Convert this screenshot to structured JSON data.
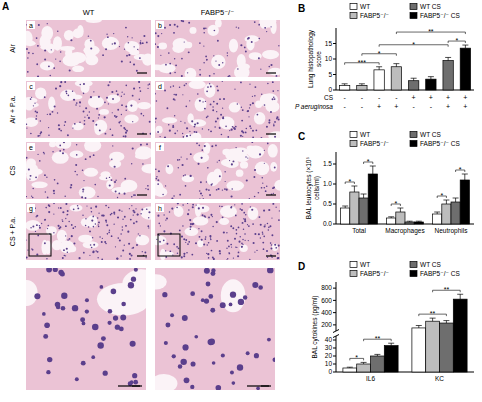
{
  "panel_a": {
    "label": "A",
    "columns": [
      "WT",
      "FABP5⁻/⁻"
    ],
    "rows": [
      "Air",
      "Air + P.a.",
      "CS",
      "CS + P.a."
    ],
    "image_labels": [
      "a",
      "b",
      "c",
      "d",
      "e",
      "f",
      "g",
      "h"
    ]
  },
  "chart_data": [
    {
      "type": "bar",
      "panel": "B",
      "ylabel": "Lung histopathology score",
      "categories": [
        null,
        null,
        null,
        null,
        null,
        null,
        null,
        null
      ],
      "series": [
        {
          "name": "WT",
          "color": "#ffffff",
          "values": [
            1.5,
            null,
            6.5,
            null,
            null,
            null,
            null,
            null
          ],
          "errors": [
            0.5,
            null,
            1,
            null,
            null,
            null,
            null,
            null
          ]
        },
        {
          "name": "FABP5⁻/⁻",
          "color": "#bdbdbd",
          "values": [
            null,
            1.5,
            null,
            7.5,
            null,
            null,
            null,
            null
          ],
          "errors": [
            null,
            0.5,
            null,
            1,
            null,
            null,
            null,
            null
          ]
        },
        {
          "name": "WT CS",
          "color": "#6e6e6e",
          "values": [
            null,
            null,
            null,
            null,
            3,
            null,
            9.5,
            null
          ],
          "errors": [
            null,
            null,
            null,
            null,
            0.8,
            null,
            1,
            null
          ]
        },
        {
          "name": "FABP5⁻/⁻ CS",
          "color": "#000000",
          "values": [
            null,
            null,
            null,
            null,
            null,
            3.5,
            null,
            13.5
          ],
          "errors": [
            null,
            null,
            null,
            null,
            null,
            0.8,
            null,
            1
          ]
        }
      ],
      "ylim": [
        0,
        20
      ],
      "yticks": [
        0,
        5,
        10,
        15
      ],
      "legend": "top",
      "condition_rows": [
        {
          "label": "CS",
          "marks": [
            "-",
            "-",
            "-",
            "-",
            "+",
            "+",
            "+",
            "+"
          ]
        },
        {
          "label": "P aeruginosa",
          "marks": [
            "-",
            "-",
            "+",
            "+",
            "-",
            "-",
            "+",
            "+"
          ]
        }
      ],
      "significance": [
        {
          "from": 0,
          "to": 2,
          "label": "***"
        },
        {
          "from": 1,
          "to": 3,
          "label": "*"
        },
        {
          "from": 6,
          "to": 7,
          "label": "*"
        },
        {
          "from": 2,
          "to": 6,
          "label": "*"
        },
        {
          "from": 3,
          "to": 7,
          "label": "**"
        }
      ]
    },
    {
      "type": "bar",
      "panel": "C",
      "ylabel": "BAL leukocytes (×10⁵ cells/ml)",
      "categories": [
        "Total",
        "Macrophages",
        "Neutrophils"
      ],
      "series": [
        {
          "name": "WT",
          "color": "#ffffff",
          "values": [
            0.4,
            0.15,
            0.25
          ],
          "errors": [
            0.05,
            0.03,
            0.05
          ]
        },
        {
          "name": "FABP5⁻/⁻",
          "color": "#bdbdbd",
          "values": [
            0.8,
            0.3,
            0.5
          ],
          "errors": [
            0.15,
            0.1,
            0.1
          ]
        },
        {
          "name": "WT CS",
          "color": "#6e6e6e",
          "values": [
            0.65,
            0.05,
            0.55
          ],
          "errors": [
            0.1,
            0.02,
            0.1
          ]
        },
        {
          "name": "FABP5⁻/⁻ CS",
          "color": "#000000",
          "values": [
            1.25,
            0.05,
            1.1
          ],
          "errors": [
            0.2,
            0.02,
            0.15
          ]
        }
      ],
      "ylim": [
        0,
        1.8
      ],
      "yticks": [
        {
          "value": 0,
          "label": "0.0"
        },
        0.5,
        {
          "value": 1,
          "label": "1.0"
        },
        1.5
      ],
      "legend": "top",
      "significance": [
        {
          "category": 0,
          "from": 0,
          "to": 1,
          "label": "*"
        },
        {
          "category": 0,
          "from": 2,
          "to": 3,
          "label": "*"
        },
        {
          "category": 1,
          "from": 0,
          "to": 1,
          "label": "*"
        },
        {
          "category": 2,
          "from": 0,
          "to": 1,
          "label": "*"
        },
        {
          "category": 2,
          "from": 2,
          "to": 3,
          "label": "*"
        }
      ]
    },
    {
      "type": "bar",
      "panel": "D",
      "ylabel": "BAL cytokines (pg/ml)",
      "categories": [
        "IL6",
        "KC"
      ],
      "series": [
        {
          "name": "WT",
          "color": "#ffffff",
          "values": [
            5,
            150
          ],
          "errors": [
            1,
            40
          ]
        },
        {
          "name": "FABP5⁻/⁻",
          "color": "#bdbdbd",
          "values": [
            10,
            260
          ],
          "errors": [
            2,
            50
          ]
        },
        {
          "name": "WT CS",
          "color": "#6e6e6e",
          "values": [
            20,
            230
          ],
          "errors": [
            2,
            40
          ]
        },
        {
          "name": "FABP5⁻/⁻ CS",
          "color": "#000000",
          "values": [
            33,
            620
          ],
          "errors": [
            3,
            80
          ]
        }
      ],
      "ylim": [
        0,
        900
      ],
      "axis_break": [
        45,
        100
      ],
      "yticks": [
        0,
        10,
        20,
        30,
        40,
        200,
        400,
        600,
        800
      ],
      "legend": "top",
      "significance": [
        {
          "category": 0,
          "from": 0,
          "to": 1,
          "label": "*"
        },
        {
          "category": 0,
          "from": 1,
          "to": 3,
          "label": "**"
        },
        {
          "category": 1,
          "from": 0,
          "to": 2,
          "label": "**"
        },
        {
          "category": 1,
          "from": 1,
          "to": 3,
          "label": "**"
        }
      ]
    }
  ]
}
